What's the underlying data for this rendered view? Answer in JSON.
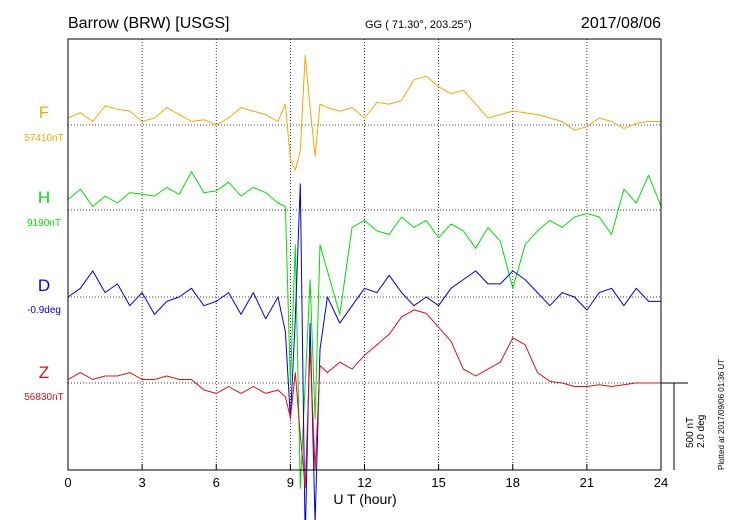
{
  "header": {
    "station": "Barrow (BRW)  [USGS]",
    "coords": "GG ( 71.30°, 203.25°)",
    "date": "2017/08/06"
  },
  "footer": {
    "plotted": "Plotted at 2017/09/06 01:36 UT",
    "scale_nt": "500 nT",
    "scale_deg": "2.0 deg"
  },
  "chart_data": {
    "type": "line",
    "xlabel": "U T (hour)",
    "xlim": [
      0,
      24
    ],
    "xticks": [
      0,
      3,
      6,
      9,
      12,
      15,
      18,
      21,
      24
    ],
    "grid": true,
    "scale": {
      "nt_per_bar": 500,
      "deg_per_bar": 2.0
    },
    "series": [
      {
        "name": "F",
        "baseline_label": "57410nT",
        "color": "#f5a800",
        "unit": "nT",
        "x": [
          0,
          0.5,
          1,
          1.5,
          2,
          2.5,
          3,
          3.5,
          4,
          4.5,
          5,
          5.5,
          6,
          6.5,
          7,
          7.5,
          8,
          8.5,
          8.8,
          9.0,
          9.2,
          9.4,
          9.6,
          9.8,
          10.0,
          10.2,
          10.5,
          11,
          11.5,
          12,
          12.5,
          13,
          13.5,
          14,
          14.5,
          15,
          15.5,
          16,
          16.5,
          17,
          17.5,
          18,
          18.5,
          19,
          19.5,
          20,
          20.5,
          21,
          21.5,
          22,
          22.5,
          23,
          23.5,
          24
        ],
        "y": [
          40,
          70,
          20,
          110,
          90,
          80,
          20,
          40,
          100,
          60,
          20,
          30,
          0,
          40,
          100,
          80,
          60,
          20,
          120,
          -200,
          -260,
          -150,
          400,
          100,
          -180,
          120,
          100,
          80,
          100,
          40,
          130,
          120,
          140,
          260,
          280,
          220,
          180,
          200,
          120,
          40,
          60,
          80,
          70,
          60,
          40,
          20,
          -30,
          -10,
          40,
          20,
          -20,
          10,
          20,
          20
        ]
      },
      {
        "name": "H",
        "baseline_label": "9190nT",
        "color": "#00e000",
        "unit": "nT",
        "x": [
          0,
          0.5,
          1,
          1.5,
          2,
          2.5,
          3,
          3.5,
          4,
          4.5,
          5,
          5.5,
          6,
          6.5,
          7,
          7.5,
          8,
          8.5,
          8.8,
          9.0,
          9.2,
          9.4,
          9.6,
          9.8,
          10.0,
          10.2,
          10.5,
          11,
          11.5,
          12,
          12.5,
          13,
          13.5,
          14,
          14.5,
          15,
          15.5,
          16,
          16.5,
          17,
          17.5,
          18,
          18.5,
          19,
          19.5,
          20,
          20.5,
          21,
          21.5,
          22,
          22.5,
          23,
          23.5,
          24
        ],
        "y": [
          60,
          120,
          20,
          80,
          40,
          100,
          90,
          80,
          130,
          90,
          220,
          100,
          110,
          160,
          80,
          130,
          100,
          40,
          20,
          -1000,
          -200,
          -1600,
          -1000,
          -400,
          -1200,
          -200,
          -350,
          -600,
          -100,
          -60,
          -120,
          -140,
          -40,
          -100,
          -60,
          -160,
          -80,
          -120,
          -220,
          -100,
          -180,
          -450,
          -200,
          -120,
          -60,
          -100,
          -40,
          -20,
          -40,
          -140,
          120,
          40,
          200,
          20
        ]
      },
      {
        "name": "D",
        "baseline_label": "-0.9deg",
        "color": "#0000e0",
        "unit": "deg",
        "x": [
          0,
          0.5,
          1,
          1.5,
          2,
          2.5,
          3,
          3.5,
          4,
          4.5,
          5,
          5.5,
          6,
          6.5,
          7,
          7.5,
          8,
          8.5,
          8.8,
          9.0,
          9.2,
          9.4,
          9.6,
          9.8,
          10.0,
          10.2,
          10.5,
          11,
          11.5,
          12,
          12.5,
          13,
          13.5,
          14,
          14.5,
          15,
          15.5,
          16,
          16.5,
          17,
          17.5,
          18,
          18.5,
          19,
          19.5,
          20,
          20.5,
          21,
          21.5,
          22,
          22.5,
          23,
          23.5,
          24
        ],
        "y": [
          0,
          0.2,
          0.6,
          0.1,
          0.3,
          -0.2,
          0.1,
          -0.4,
          -0.1,
          0,
          0.2,
          -0.2,
          -0.1,
          0.1,
          -0.4,
          0.1,
          -0.5,
          0,
          -0.8,
          -2.8,
          -0.5,
          2.6,
          -5.6,
          -0.6,
          -5.2,
          -1.2,
          0,
          -0.6,
          -0.2,
          0.2,
          0.1,
          0.5,
          0.1,
          -0.2,
          0,
          -0.2,
          0.2,
          0.4,
          0.6,
          0.3,
          0.3,
          0.6,
          0.4,
          0.1,
          -0.2,
          0.1,
          0,
          -0.3,
          0.1,
          0.2,
          -0.2,
          0.2,
          -0.1,
          -0.1
        ]
      },
      {
        "name": "Z",
        "baseline_label": "56830nT",
        "color": "#e01010",
        "unit": "nT",
        "x": [
          0,
          0.5,
          1,
          1.5,
          2,
          2.5,
          3,
          3.5,
          4,
          4.5,
          5,
          5.5,
          6,
          6.5,
          7,
          7.5,
          8,
          8.5,
          8.8,
          9.0,
          9.2,
          9.4,
          9.6,
          9.8,
          10.0,
          10.2,
          10.5,
          11,
          11.5,
          12,
          12.5,
          13,
          13.5,
          14,
          14.5,
          15,
          15.5,
          16,
          16.5,
          17,
          17.5,
          18,
          18.5,
          19,
          19.5,
          20,
          20.5,
          21,
          21.5,
          22,
          22.5,
          23,
          23.5,
          24
        ],
        "y": [
          20,
          60,
          20,
          40,
          40,
          60,
          20,
          20,
          40,
          20,
          20,
          -40,
          -60,
          -20,
          -60,
          -20,
          -60,
          -40,
          -80,
          -200,
          60,
          -300,
          -600,
          200,
          -500,
          100,
          60,
          120,
          80,
          160,
          220,
          280,
          380,
          420,
          400,
          320,
          240,
          80,
          40,
          80,
          120,
          260,
          220,
          60,
          10,
          0,
          -20,
          -20,
          -10,
          -20,
          -10,
          0,
          0,
          0
        ]
      }
    ]
  }
}
